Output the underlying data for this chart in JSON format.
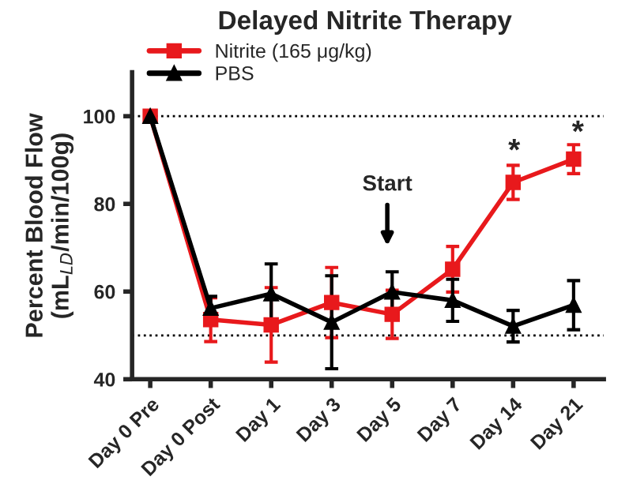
{
  "chart_data": {
    "type": "line",
    "title": "Delayed Nitrite Therapy",
    "ylabel": "Percent Blood Flow\n(mL$_{LD}$/min/100g)",
    "categories": [
      "Day 0 Pre",
      "Day 0 Post",
      "Day 1",
      "Day 3",
      "Day 5",
      "Day 7",
      "Day 14",
      "Day 21"
    ],
    "series": [
      {
        "name": "Nitrite (165 μg/kg)",
        "color": "#e8191c",
        "marker": "square",
        "values": [
          100,
          53.6,
          52.4,
          57.5,
          54.8,
          65.1,
          84.9,
          90.2
        ],
        "errors": [
          null,
          5,
          8.5,
          8,
          5.5,
          5.2,
          3.9,
          3.3
        ]
      },
      {
        "name": "PBS",
        "color": "#000000",
        "marker": "triangle",
        "values": [
          100,
          56.2,
          59.5,
          53,
          59.9,
          58,
          52.1,
          56.9
        ],
        "errors": [
          null,
          2.7,
          6.8,
          10.6,
          4.6,
          4.8,
          3.6,
          5.6
        ]
      }
    ],
    "ylim": [
      40,
      110
    ],
    "yticks": [
      40,
      60,
      80,
      100
    ],
    "ref_lines": [
      {
        "axis": "y",
        "value": 100,
        "line_style": "dotted",
        "color": "#000000"
      },
      {
        "axis": "y",
        "value": 50,
        "line_style": "dotted",
        "color": "#000000"
      }
    ],
    "annotations": [
      "Start",
      "*",
      "*"
    ],
    "grid": false,
    "legend": "top left",
    "line_style": "solid"
  }
}
